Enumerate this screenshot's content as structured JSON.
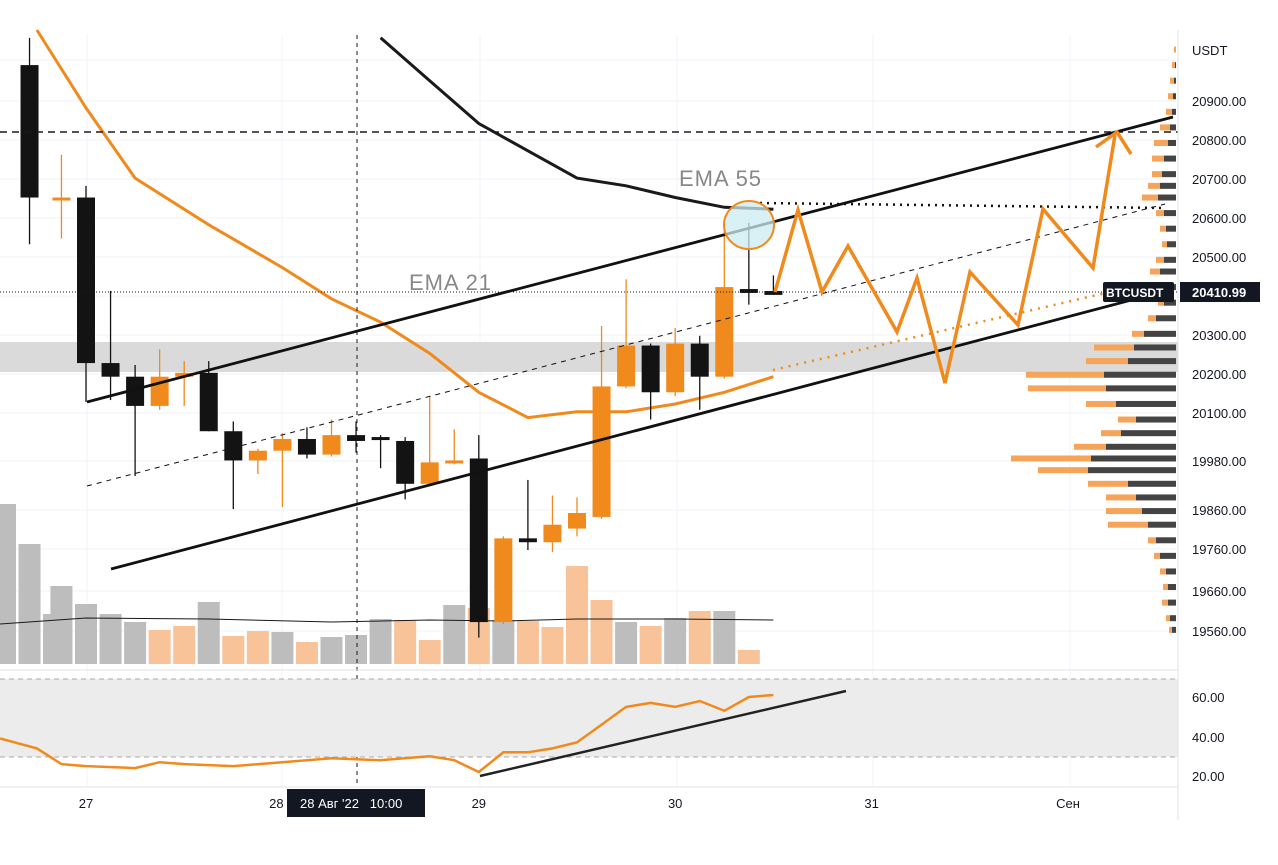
{
  "chart_data": {
    "type": "candlestick",
    "symbol": "BTCUSDT",
    "currency_label": "USDT",
    "last_price": "20410.99",
    "crosshair_time_label": "28 Авг '22   10:00",
    "x_tick_labels": [
      {
        "label": "27",
        "t": 0
      },
      {
        "label": "28",
        "t": 8
      },
      {
        "label": "29",
        "t": 16
      },
      {
        "label": "30",
        "t": 24
      },
      {
        "label": "31",
        "t": 32
      },
      {
        "label": "Сен",
        "t": 40
      }
    ],
    "y_tick_labels": [
      "20900.00",
      "20800.00",
      "20700.00",
      "20600.00",
      "20500.00",
      "20300.00",
      "20200.00",
      "20100.00",
      "19980.00",
      "19860.00",
      "19760.00",
      "19660.00",
      "19560.00"
    ],
    "rsi_tick_labels": [
      "60.00",
      "40.00",
      "20.00"
    ],
    "annotations": [
      "EMA 55",
      "EMA 21"
    ],
    "candles": [
      {
        "t": -2.3,
        "o": 20990,
        "h": 21060,
        "l": 20530,
        "c": 20650
      },
      {
        "t": -1.0,
        "o": 20650,
        "h": 20760,
        "l": 20545,
        "c": 20650
      },
      {
        "t": 0,
        "o": 20650,
        "h": 20680,
        "l": 20125,
        "c": 20225
      },
      {
        "t": 1,
        "o": 20225,
        "h": 20410,
        "l": 20130,
        "c": 20190
      },
      {
        "t": 2,
        "o": 20190,
        "h": 20220,
        "l": 19935,
        "c": 20115
      },
      {
        "t": 3,
        "o": 20115,
        "h": 20260,
        "l": 20105,
        "c": 20190
      },
      {
        "t": 4,
        "o": 20190,
        "h": 20230,
        "l": 20115,
        "c": 20200
      },
      {
        "t": 5,
        "o": 20200,
        "h": 20230,
        "l": 20050,
        "c": 20050
      },
      {
        "t": 6,
        "o": 20050,
        "h": 20075,
        "l": 19850,
        "c": 19975
      },
      {
        "t": 7,
        "o": 19975,
        "h": 20005,
        "l": 19940,
        "c": 20000
      },
      {
        "t": 8,
        "o": 20000,
        "h": 20045,
        "l": 19855,
        "c": 20030
      },
      {
        "t": 9,
        "o": 20030,
        "h": 20060,
        "l": 19980,
        "c": 19990
      },
      {
        "t": 10,
        "o": 19990,
        "h": 20080,
        "l": 19985,
        "c": 20040
      },
      {
        "t": 11,
        "o": 20040,
        "h": 20075,
        "l": 19995,
        "c": 20025
      },
      {
        "t": 12,
        "o": 20035,
        "h": 20040,
        "l": 19955,
        "c": 20030
      },
      {
        "t": 13,
        "o": 20025,
        "h": 20035,
        "l": 19875,
        "c": 19915
      },
      {
        "t": 14,
        "o": 19915,
        "h": 20140,
        "l": 19910,
        "c": 19970
      },
      {
        "t": 15,
        "o": 19970,
        "h": 20055,
        "l": 19965,
        "c": 19975
      },
      {
        "t": 16,
        "o": 19980,
        "h": 20040,
        "l": 19520,
        "c": 19560
      },
      {
        "t": 17,
        "o": 19560,
        "h": 19780,
        "l": 19555,
        "c": 19775
      },
      {
        "t": 18,
        "o": 19775,
        "h": 19925,
        "l": 19745,
        "c": 19765
      },
      {
        "t": 19,
        "o": 19765,
        "h": 19885,
        "l": 19740,
        "c": 19810
      },
      {
        "t": 20,
        "o": 19800,
        "h": 19880,
        "l": 19780,
        "c": 19840
      },
      {
        "t": 21,
        "o": 19830,
        "h": 20320,
        "l": 19825,
        "c": 20165
      },
      {
        "t": 22,
        "o": 20165,
        "h": 20440,
        "l": 20160,
        "c": 20270
      },
      {
        "t": 23,
        "o": 20270,
        "h": 20275,
        "l": 20080,
        "c": 20150
      },
      {
        "t": 24,
        "o": 20150,
        "h": 20315,
        "l": 20140,
        "c": 20275
      },
      {
        "t": 25,
        "o": 20275,
        "h": 20295,
        "l": 20105,
        "c": 20190
      },
      {
        "t": 26,
        "o": 20190,
        "h": 20590,
        "l": 20185,
        "c": 20420
      },
      {
        "t": 27,
        "o": 20415,
        "h": 20585,
        "l": 20375,
        "c": 20405
      },
      {
        "t": 28,
        "o": 20410,
        "h": 20450,
        "l": 20400,
        "c": 20400
      }
    ],
    "volumes": [
      {
        "t": -3.3,
        "v": 160,
        "c": "#bdbdbd"
      },
      {
        "t": -2.3,
        "v": 120,
        "c": "#bdbdbd"
      },
      {
        "t": -1.3,
        "v": 50,
        "c": "#bdbdbd"
      },
      {
        "t": -1,
        "v": 78,
        "c": "#bdbdbd"
      },
      {
        "t": 0,
        "v": 60,
        "c": "#bdbdbd"
      },
      {
        "t": 1,
        "v": 50,
        "c": "#bdbdbd"
      },
      {
        "t": 2,
        "v": 42,
        "c": "#bdbdbd"
      },
      {
        "t": 3,
        "v": 34,
        "c": "#f9c39a"
      },
      {
        "t": 4,
        "v": 38,
        "c": "#f9c39a"
      },
      {
        "t": 5,
        "v": 62,
        "c": "#bdbdbd"
      },
      {
        "t": 6,
        "v": 28,
        "c": "#f9c39a"
      },
      {
        "t": 7,
        "v": 33,
        "c": "#f9c39a"
      },
      {
        "t": 8,
        "v": 32,
        "c": "#bdbdbd"
      },
      {
        "t": 9,
        "v": 22,
        "c": "#f9c39a"
      },
      {
        "t": 10,
        "v": 27,
        "c": "#bdbdbd"
      },
      {
        "t": 11,
        "v": 29,
        "c": "#bdbdbd"
      },
      {
        "t": 12,
        "v": 45,
        "c": "#bdbdbd"
      },
      {
        "t": 13,
        "v": 44,
        "c": "#f9c39a"
      },
      {
        "t": 14,
        "v": 24,
        "c": "#f9c39a"
      },
      {
        "t": 15,
        "v": 59,
        "c": "#bdbdbd"
      },
      {
        "t": 16,
        "v": 56,
        "c": "#f9c39a"
      },
      {
        "t": 17,
        "v": 44,
        "c": "#bdbdbd"
      },
      {
        "t": 18,
        "v": 43,
        "c": "#f9c39a"
      },
      {
        "t": 19,
        "v": 37,
        "c": "#f9c39a"
      },
      {
        "t": 20,
        "v": 98,
        "c": "#f9c39a"
      },
      {
        "t": 21,
        "v": 64,
        "c": "#f9c39a"
      },
      {
        "t": 22,
        "v": 42,
        "c": "#bdbdbd"
      },
      {
        "t": 23,
        "v": 38,
        "c": "#f9c39a"
      },
      {
        "t": 24,
        "v": 46,
        "c": "#bdbdbd"
      },
      {
        "t": 25,
        "v": 53,
        "c": "#f9c39a"
      },
      {
        "t": 26,
        "v": 53,
        "c": "#bdbdbd"
      },
      {
        "t": 27,
        "v": 14,
        "c": "#f9c39a"
      }
    ],
    "ema21": [
      {
        "t": -2,
        "y": 21080
      },
      {
        "t": 0,
        "y": 20880
      },
      {
        "t": 2,
        "y": 20700
      },
      {
        "t": 5,
        "y": 20580
      },
      {
        "t": 8,
        "y": 20470
      },
      {
        "t": 10,
        "y": 20390
      },
      {
        "t": 12,
        "y": 20330
      },
      {
        "t": 14,
        "y": 20250
      },
      {
        "t": 16,
        "y": 20150
      },
      {
        "t": 18,
        "y": 20085
      },
      {
        "t": 20,
        "y": 20100
      },
      {
        "t": 22,
        "y": 20100
      },
      {
        "t": 24,
        "y": 20120
      },
      {
        "t": 26,
        "y": 20150
      },
      {
        "t": 28,
        "y": 20190
      }
    ],
    "ema55": [
      {
        "t": 12,
        "y": 21060
      },
      {
        "t": 14,
        "y": 20950
      },
      {
        "t": 16,
        "y": 20840
      },
      {
        "t": 18,
        "y": 20770
      },
      {
        "t": 20,
        "y": 20700
      },
      {
        "t": 22,
        "y": 20680
      },
      {
        "t": 24,
        "y": 20650
      },
      {
        "t": 26,
        "y": 20625
      },
      {
        "t": 28,
        "y": 20620
      }
    ],
    "volume_ma": [
      {
        "t": -3.5,
        "v": 40
      },
      {
        "t": 0,
        "v": 46
      },
      {
        "t": 5,
        "v": 45
      },
      {
        "t": 10,
        "v": 42
      },
      {
        "t": 14,
        "v": 44
      },
      {
        "t": 17,
        "v": 43
      },
      {
        "t": 20,
        "v": 45
      },
      {
        "t": 24,
        "v": 45
      },
      {
        "t": 28,
        "v": 44
      }
    ],
    "rsi": [
      {
        "t": -3.5,
        "v": 39
      },
      {
        "t": -2,
        "v": 34
      },
      {
        "t": -1,
        "v": 26
      },
      {
        "t": 0,
        "v": 25
      },
      {
        "t": 2,
        "v": 24
      },
      {
        "t": 3,
        "v": 27
      },
      {
        "t": 4,
        "v": 26
      },
      {
        "t": 6,
        "v": 25
      },
      {
        "t": 8,
        "v": 27
      },
      {
        "t": 10,
        "v": 29
      },
      {
        "t": 12,
        "v": 28
      },
      {
        "t": 14,
        "v": 30
      },
      {
        "t": 15,
        "v": 28
      },
      {
        "t": 16,
        "v": 22
      },
      {
        "t": 17,
        "v": 32
      },
      {
        "t": 18,
        "v": 32
      },
      {
        "t": 19,
        "v": 34
      },
      {
        "t": 20,
        "v": 37
      },
      {
        "t": 21,
        "v": 46
      },
      {
        "t": 22,
        "v": 55
      },
      {
        "t": 23,
        "v": 57
      },
      {
        "t": 24,
        "v": 55
      },
      {
        "t": 25,
        "v": 58
      },
      {
        "t": 26,
        "v": 53
      },
      {
        "t": 27,
        "v": 60
      },
      {
        "t": 28,
        "v": 61
      }
    ],
    "volume_profile": [
      {
        "p": 21030,
        "g": 0,
        "o": 2
      },
      {
        "p": 20990,
        "g": 1,
        "o": 3
      },
      {
        "p": 20950,
        "g": 2,
        "o": 4
      },
      {
        "p": 20910,
        "g": 3,
        "o": 5
      },
      {
        "p": 20870,
        "g": 4,
        "o": 6
      },
      {
        "p": 20830,
        "g": 6,
        "o": 10
      },
      {
        "p": 20790,
        "g": 8,
        "o": 14
      },
      {
        "p": 20750,
        "g": 12,
        "o": 12
      },
      {
        "p": 20710,
        "g": 14,
        "o": 10
      },
      {
        "p": 20680,
        "g": 16,
        "o": 12
      },
      {
        "p": 20650,
        "g": 18,
        "o": 16
      },
      {
        "p": 20610,
        "g": 12,
        "o": 8
      },
      {
        "p": 20570,
        "g": 10,
        "o": 6
      },
      {
        "p": 20530,
        "g": 9,
        "o": 5
      },
      {
        "p": 20490,
        "g": 12,
        "o": 8
      },
      {
        "p": 20460,
        "g": 16,
        "o": 10
      },
      {
        "p": 20420,
        "g": 14,
        "o": 8
      },
      {
        "p": 20380,
        "g": 12,
        "o": 6
      },
      {
        "p": 20340,
        "g": 20,
        "o": 8
      },
      {
        "p": 20300,
        "g": 32,
        "o": 12
      },
      {
        "p": 20265,
        "g": 42,
        "o": 40
      },
      {
        "p": 20230,
        "g": 48,
        "o": 42
      },
      {
        "p": 20195,
        "g": 72,
        "o": 78
      },
      {
        "p": 20160,
        "g": 70,
        "o": 78
      },
      {
        "p": 20120,
        "g": 60,
        "o": 30
      },
      {
        "p": 20080,
        "g": 40,
        "o": 18
      },
      {
        "p": 20045,
        "g": 55,
        "o": 20
      },
      {
        "p": 20010,
        "g": 70,
        "o": 32
      },
      {
        "p": 19980,
        "g": 85,
        "o": 80
      },
      {
        "p": 19950,
        "g": 88,
        "o": 50
      },
      {
        "p": 19915,
        "g": 48,
        "o": 40
      },
      {
        "p": 19880,
        "g": 40,
        "o": 30
      },
      {
        "p": 19845,
        "g": 34,
        "o": 36
      },
      {
        "p": 19810,
        "g": 28,
        "o": 40
      },
      {
        "p": 19770,
        "g": 20,
        "o": 8
      },
      {
        "p": 19730,
        "g": 16,
        "o": 6
      },
      {
        "p": 19690,
        "g": 10,
        "o": 6
      },
      {
        "p": 19650,
        "g": 8,
        "o": 5
      },
      {
        "p": 19610,
        "g": 8,
        "o": 6
      },
      {
        "p": 19570,
        "g": 6,
        "o": 4
      },
      {
        "p": 19540,
        "g": 4,
        "o": 3
      }
    ]
  }
}
